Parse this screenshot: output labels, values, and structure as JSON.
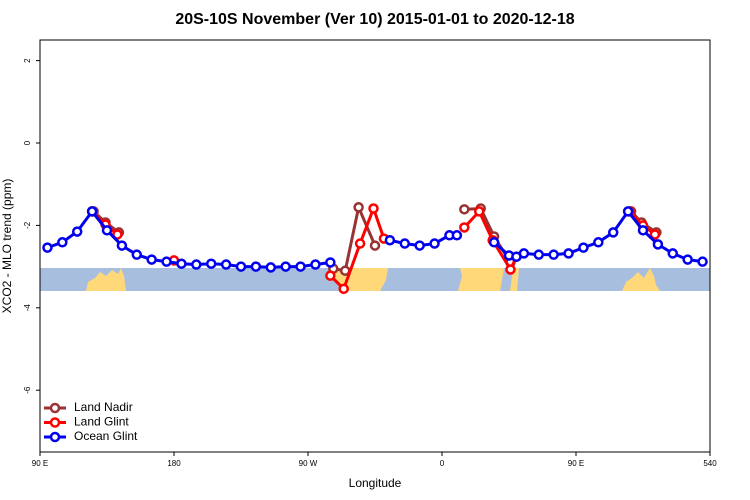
{
  "chart_data": {
    "type": "line",
    "title": "20S-10S November (Ver 10)   2015-01-01 to 2020-12-18",
    "x_label": "Longitude",
    "y_label": "XCO2 - MLO trend (ppm)",
    "xlim": [
      90,
      540
    ],
    "xticks": [
      {
        "value": 90,
        "label": "90 E"
      },
      180,
      {
        "value": 270,
        "label": "90 W"
      },
      {
        "value": 360,
        "label": "0"
      },
      {
        "value": 450,
        "label": "90 E"
      },
      540
    ],
    "ylim": [
      -7.5,
      2.5
    ],
    "yticks": [
      2,
      0,
      -2,
      -4,
      -6
    ],
    "legend": "bottom-left",
    "series": [
      {
        "name": "Land Nadir",
        "color": "#993333",
        "x": [
          126,
          134,
          143,
          210,
          287,
          295,
          304,
          315,
          350,
          375,
          386,
          395,
          406,
          450,
          487,
          494,
          504
        ],
        "values": [
          -1.66,
          -1.93,
          -2.17,
          null,
          -3.05,
          -3.1,
          -1.56,
          -2.49,
          null,
          -1.61,
          -1.59,
          -2.27,
          -2.9,
          null,
          -1.66,
          -1.93,
          -2.17
        ]
      },
      {
        "name": "Land Glint",
        "color": "#ff0000",
        "x": [
          125,
          134,
          142,
          160,
          180,
          230,
          285,
          294,
          305,
          314,
          321,
          350,
          375,
          385,
          394,
          406,
          410,
          450,
          486,
          495,
          503
        ],
        "values": [
          -1.66,
          -1.98,
          -2.22,
          null,
          -2.85,
          null,
          -3.22,
          -3.54,
          -2.44,
          -1.59,
          -2.32,
          null,
          -2.05,
          -1.66,
          -2.36,
          -3.07,
          -2.76,
          null,
          -1.66,
          -2.0,
          -2.22
        ]
      },
      {
        "name": "Ocean Glint",
        "color": "#0000ee",
        "x": [
          95,
          105,
          115,
          125,
          135,
          145,
          155,
          165,
          175,
          185,
          195,
          205,
          215,
          225,
          235,
          245,
          255,
          265,
          275,
          285,
          305,
          325,
          335,
          345,
          355,
          365,
          370,
          383,
          395,
          405,
          410,
          415,
          425,
          435,
          445,
          455,
          465,
          475,
          485,
          495,
          505,
          515,
          525,
          535
        ],
        "values": [
          -2.54,
          -2.41,
          -2.15,
          -1.66,
          -2.12,
          -2.49,
          -2.71,
          -2.83,
          -2.88,
          -2.93,
          -2.95,
          -2.93,
          -2.95,
          -3.0,
          -3.0,
          -3.02,
          -3.0,
          -3.0,
          -2.95,
          -2.9,
          null,
          -2.36,
          -2.44,
          -2.49,
          -2.44,
          -2.24,
          -2.24,
          null,
          -2.41,
          -2.73,
          -2.76,
          -2.68,
          -2.71,
          -2.71,
          -2.68,
          -2.54,
          -2.41,
          -2.17,
          -1.66,
          -2.12,
          -2.46,
          -2.68,
          -2.83,
          -2.88
        ]
      }
    ]
  }
}
